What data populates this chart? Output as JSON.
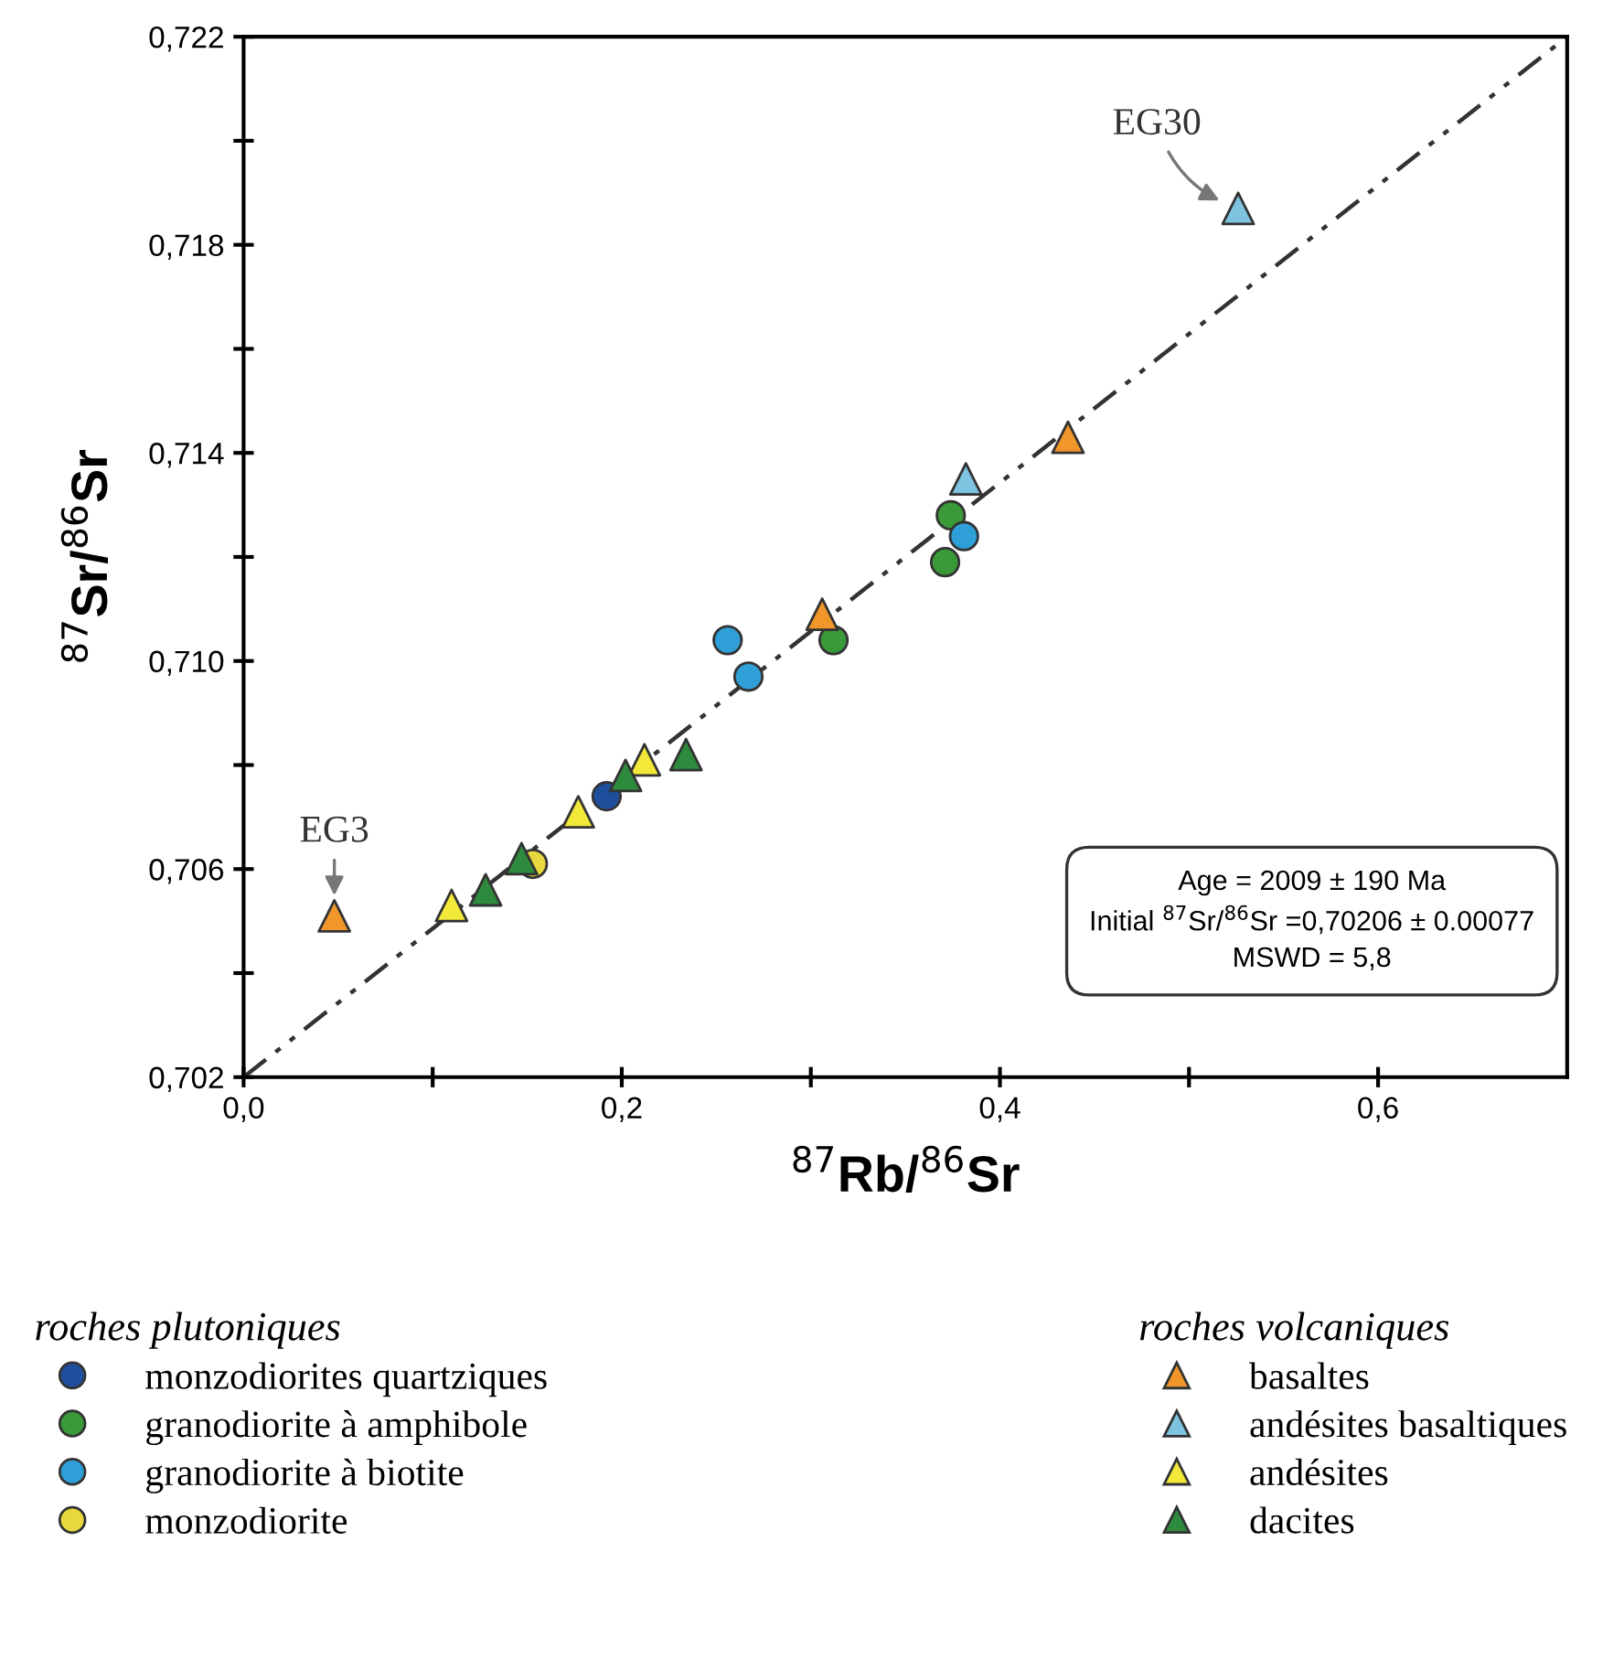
{
  "chart_data": {
    "type": "scatter",
    "xlabel": "$^{87}$Rb/$^{86}$Sr",
    "ylabel": "$^{87}$Sr/$^{86}$Sr",
    "xlim": [
      0,
      0.7
    ],
    "ylim": [
      0.702,
      0.722
    ],
    "xticks": [
      {
        "value": 0,
        "label": "0,0"
      },
      {
        "value": 0.1,
        "label": null
      },
      {
        "value": 0.2,
        "label": "0,2"
      },
      {
        "value": 0.3,
        "label": null
      },
      {
        "value": 0.4,
        "label": "0,4"
      },
      {
        "value": 0.5,
        "label": null
      },
      {
        "value": 0.6,
        "label": "0,6"
      }
    ],
    "yticks": [
      {
        "value": 0.702,
        "label": "0,702"
      },
      {
        "value": 0.704,
        "label": null
      },
      {
        "value": 0.706,
        "label": "0,706"
      },
      {
        "value": 0.708,
        "label": null
      },
      {
        "value": 0.71,
        "label": "0,710"
      },
      {
        "value": 0.712,
        "label": null
      },
      {
        "value": 0.714,
        "label": "0,714"
      },
      {
        "value": 0.716,
        "label": null
      },
      {
        "value": 0.718,
        "label": "0,718"
      },
      {
        "value": 0.72,
        "label": null
      },
      {
        "value": 0.722,
        "label": "0,722"
      }
    ],
    "grid": false,
    "legend": "bottom",
    "legend_title": [
      "roches plutoniques",
      "roches volcaniques"
    ],
    "series": [
      {
        "name": "monzodiorites quartziques",
        "color": "#1f4e9c",
        "marker": "circle",
        "x": [
          0.192
        ],
        "values": [
          0.7074
        ]
      },
      {
        "name": "granodiorite à amphibole",
        "color": "#3a9a3a",
        "marker": "circle",
        "x": [
          0.312,
          0.374,
          0.371
        ],
        "values": [
          0.7104,
          0.7128,
          0.7119
        ]
      },
      {
        "name": "granodiorite à biotite",
        "color": "#2f9fd8",
        "marker": "circle",
        "x": [
          0.256,
          0.267,
          0.381
        ],
        "values": [
          0.7104,
          0.7097,
          0.7124
        ]
      },
      {
        "name": "monzodiorite",
        "color": "#e8d840",
        "marker": "circle",
        "x": [
          0.153
        ],
        "values": [
          0.7061
        ]
      },
      {
        "name": "basaltes",
        "color": "#f0962a",
        "marker": "triangle",
        "x": [
          0.048,
          0.306,
          0.436
        ],
        "values": [
          0.7051,
          0.7109,
          0.7143
        ]
      },
      {
        "name": "andésites basaltiques",
        "color": "#7ec3e0",
        "marker": "triangle",
        "x": [
          0.382,
          0.526
        ],
        "values": [
          0.7135,
          0.7187
        ]
      },
      {
        "name": "andésites",
        "color": "#f2e83a",
        "marker": "triangle",
        "x": [
          0.11,
          0.177,
          0.212
        ],
        "values": [
          0.7053,
          0.7071,
          0.7081
        ]
      },
      {
        "name": "dacites",
        "color": "#2e8b3e",
        "marker": "triangle",
        "x": [
          0.128,
          0.147,
          0.202,
          0.234
        ],
        "values": [
          0.7056,
          0.7062,
          0.7078,
          0.7082
        ]
      },
      {
        "type": "line",
        "color": "#333333",
        "line_style": "dashed",
        "marker": "none",
        "x": [
          0,
          0.7
        ],
        "values": [
          0.702,
          0.722
        ]
      }
    ],
    "annotations": [
      {
        "text": "EG3",
        "x": 0.048,
        "y": 0.7051
      },
      {
        "text": "EG30",
        "x": 0.526,
        "y": 0.7187
      },
      "Age = 2009 ± 190 Ma",
      "Initial $^{87}$Sr/$^{86}$Sr =0,70206 ± 0.00077",
      "MSWD = 5,8"
    ]
  }
}
